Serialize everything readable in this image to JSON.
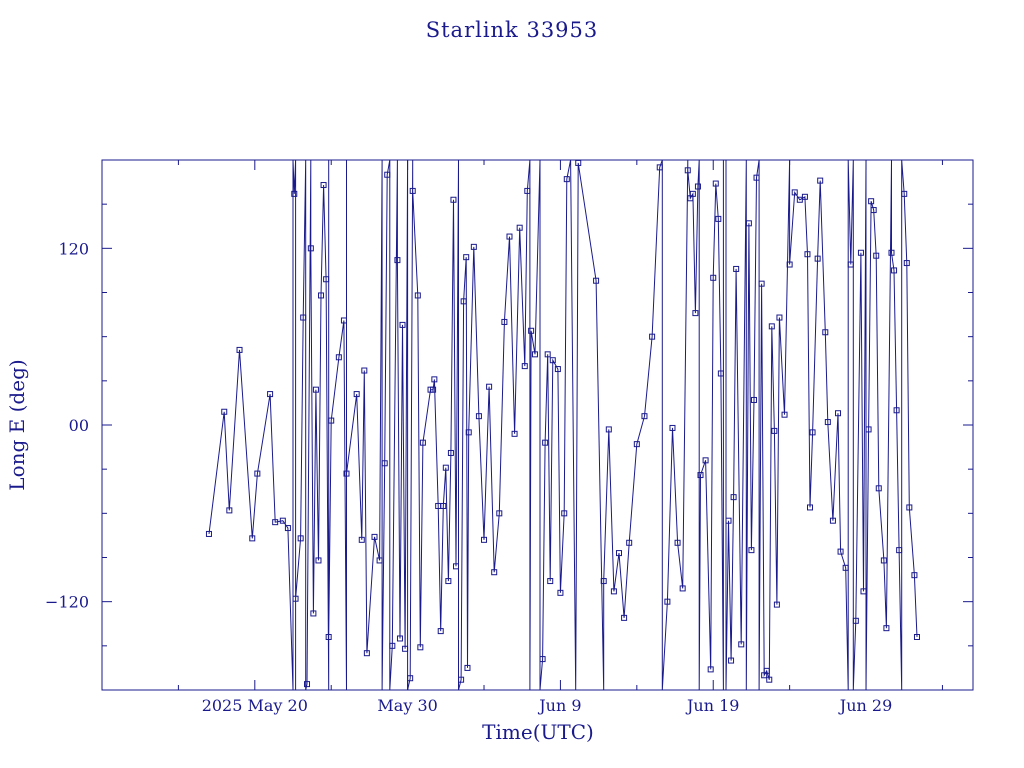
{
  "chart_data": {
    "type": "line",
    "title": "Starlink 33953",
    "xlabel": "Time(UTC)",
    "ylabel": "Long E (deg)",
    "xlim": [
      "2025-05-10",
      "2025-07-06"
    ],
    "ylim": [
      -180,
      180
    ],
    "x_ticks": [
      {
        "date": "2025-05-20",
        "label": "2025 May 20"
      },
      {
        "date": "2025-05-30",
        "label": "May 30"
      },
      {
        "date": "2025-06-09",
        "label": "Jun  9"
      },
      {
        "date": "2025-06-19",
        "label": "Jun 19"
      },
      {
        "date": "2025-06-29",
        "label": "Jun 29"
      }
    ],
    "y_ticks": [
      {
        "value": 120,
        "label": "120"
      },
      {
        "value": 0,
        "label": "00"
      },
      {
        "value": -120,
        "label": "−120"
      }
    ],
    "grid": false,
    "color": "#1a1a8c",
    "series": [
      {
        "points": [
          [
            "2025-05-17T00:00",
            -74
          ],
          [
            "2025-05-18T00:00",
            9
          ],
          [
            "2025-05-18T08:00",
            -58
          ],
          [
            "2025-05-19T00:00",
            51
          ],
          [
            "2025-05-19T20:00",
            -77
          ],
          [
            "2025-05-20T04:00",
            -33
          ],
          [
            "2025-05-21T00:00",
            21
          ],
          [
            "2025-05-21T08:00",
            -66
          ],
          [
            "2025-05-21T20:00",
            -65
          ],
          [
            "2025-05-22T04:00",
            -70
          ],
          [
            "2025-05-22T12:00",
            -180
          ],
          [
            "2025-05-22T12:00",
            180
          ],
          [
            "2025-05-22T14:00",
            157
          ],
          [
            "2025-05-22T16:00",
            180
          ],
          [
            "2025-05-22T16:00",
            -180
          ],
          [
            "2025-05-22T16:00",
            -118
          ],
          [
            "2025-05-23T00:00",
            -77
          ],
          [
            "2025-05-23T04:00",
            73
          ],
          [
            "2025-05-23T08:00",
            180
          ],
          [
            "2025-05-23T08:00",
            -180
          ],
          [
            "2025-05-23T10:00",
            -176
          ],
          [
            "2025-05-23T16:00",
            180
          ],
          [
            "2025-05-23T16:00",
            120
          ],
          [
            "2025-05-23T20:00",
            -128
          ],
          [
            "2025-05-24T00:00",
            24
          ],
          [
            "2025-05-24T04:00",
            -92
          ],
          [
            "2025-05-24T08:00",
            88
          ],
          [
            "2025-05-24T12:00",
            163
          ],
          [
            "2025-05-24T16:00",
            99
          ],
          [
            "2025-05-24T20:00",
            -180
          ],
          [
            "2025-05-24T20:00",
            180
          ],
          [
            "2025-05-24T20:00",
            -144
          ],
          [
            "2025-05-25T00:00",
            3
          ],
          [
            "2025-05-25T12:00",
            46
          ],
          [
            "2025-05-25T20:00",
            71
          ],
          [
            "2025-05-26T00:00",
            -180
          ],
          [
            "2025-05-26T00:00",
            180
          ],
          [
            "2025-05-26T00:00",
            -33
          ],
          [
            "2025-05-26T16:00",
            21
          ],
          [
            "2025-05-27T00:00",
            -78
          ],
          [
            "2025-05-27T04:00",
            37
          ],
          [
            "2025-05-27T08:00",
            -155
          ],
          [
            "2025-05-27T20:00",
            -76
          ],
          [
            "2025-05-28T04:00",
            -92
          ],
          [
            "2025-05-28T08:00",
            180
          ],
          [
            "2025-05-28T08:00",
            -180
          ],
          [
            "2025-05-28T12:00",
            -26
          ],
          [
            "2025-05-28T16:00",
            170
          ],
          [
            "2025-05-28T20:00",
            180
          ],
          [
            "2025-05-28T20:00",
            -180
          ],
          [
            "2025-05-29T00:00",
            -150
          ],
          [
            "2025-05-29T08:00",
            180
          ],
          [
            "2025-05-29T08:00",
            112
          ],
          [
            "2025-05-29T12:00",
            -145
          ],
          [
            "2025-05-29T16:00",
            68
          ],
          [
            "2025-05-29T20:00",
            -152
          ],
          [
            "2025-05-30T00:00",
            180
          ],
          [
            "2025-05-30T00:00",
            -180
          ],
          [
            "2025-05-30T04:00",
            -172
          ],
          [
            "2025-05-30T08:00",
            180
          ],
          [
            "2025-05-30T08:00",
            159
          ],
          [
            "2025-05-30T16:00",
            88
          ],
          [
            "2025-05-30T20:00",
            -151
          ],
          [
            "2025-05-31T00:00",
            -12
          ],
          [
            "2025-05-31T12:00",
            24
          ],
          [
            "2025-05-31T16:00",
            24
          ],
          [
            "2025-05-31T18:00",
            31
          ],
          [
            "2025-06-01T00:00",
            -55
          ],
          [
            "2025-06-01T04:00",
            -140
          ],
          [
            "2025-06-01T08:00",
            -55
          ],
          [
            "2025-06-01T12:00",
            -29
          ],
          [
            "2025-06-01T16:00",
            -106
          ],
          [
            "2025-06-01T20:00",
            -19
          ],
          [
            "2025-06-02T00:00",
            153
          ],
          [
            "2025-06-02T04:00",
            -96
          ],
          [
            "2025-06-02T08:00",
            180
          ],
          [
            "2025-06-02T08:00",
            -180
          ],
          [
            "2025-06-02T12:00",
            -173
          ],
          [
            "2025-06-02T16:00",
            84
          ],
          [
            "2025-06-02T20:00",
            114
          ],
          [
            "2025-06-02T22:00",
            -165
          ],
          [
            "2025-06-03T00:00",
            -5
          ],
          [
            "2025-06-03T08:00",
            121
          ],
          [
            "2025-06-03T16:00",
            6
          ],
          [
            "2025-06-04T00:00",
            -78
          ],
          [
            "2025-06-04T08:00",
            26
          ],
          [
            "2025-06-04T16:00",
            -100
          ],
          [
            "2025-06-05T00:00",
            -60
          ],
          [
            "2025-06-05T08:00",
            70
          ],
          [
            "2025-06-05T16:00",
            128
          ],
          [
            "2025-06-06T00:00",
            -6
          ],
          [
            "2025-06-06T08:00",
            134
          ],
          [
            "2025-06-06T16:00",
            40
          ],
          [
            "2025-06-06T20:00",
            159
          ],
          [
            "2025-06-07T00:00",
            180
          ],
          [
            "2025-06-07T00:00",
            -180
          ],
          [
            "2025-06-07T02:00",
            64
          ],
          [
            "2025-06-07T08:00",
            48
          ],
          [
            "2025-06-07T16:00",
            180
          ],
          [
            "2025-06-07T16:00",
            -180
          ],
          [
            "2025-06-07T20:00",
            -159
          ],
          [
            "2025-06-08T00:00",
            -12
          ],
          [
            "2025-06-08T04:00",
            48
          ],
          [
            "2025-06-08T08:00",
            -106
          ],
          [
            "2025-06-08T12:00",
            44
          ],
          [
            "2025-06-08T20:00",
            38
          ],
          [
            "2025-06-09T00:00",
            -114
          ],
          [
            "2025-06-09T06:00",
            -60
          ],
          [
            "2025-06-09T10:00",
            167
          ],
          [
            "2025-06-09T16:00",
            180
          ],
          [
            "2025-06-10T00:00",
            -180
          ],
          [
            "2025-06-10T04:00",
            178
          ],
          [
            "2025-06-11T08:00",
            98
          ],
          [
            "2025-06-11T20:00",
            -180
          ],
          [
            "2025-06-11T20:00",
            -106
          ],
          [
            "2025-06-12T04:00",
            -3
          ],
          [
            "2025-06-12T12:00",
            -113
          ],
          [
            "2025-06-12T20:00",
            -87
          ],
          [
            "2025-06-13T04:00",
            -131
          ],
          [
            "2025-06-13T12:00",
            -80
          ],
          [
            "2025-06-14T00:00",
            -13
          ],
          [
            "2025-06-14T12:00",
            6
          ],
          [
            "2025-06-15T00:00",
            60
          ],
          [
            "2025-06-15T12:00",
            175
          ],
          [
            "2025-06-15T16:00",
            180
          ],
          [
            "2025-06-15T16:00",
            -180
          ],
          [
            "2025-06-16T00:00",
            -120
          ],
          [
            "2025-06-16T08:00",
            -2
          ],
          [
            "2025-06-16T16:00",
            -80
          ],
          [
            "2025-06-17T00:00",
            -111
          ],
          [
            "2025-06-17T08:00",
            180
          ],
          [
            "2025-06-17T08:00",
            173
          ],
          [
            "2025-06-17T12:00",
            154
          ],
          [
            "2025-06-17T16:00",
            157
          ],
          [
            "2025-06-17T20:00",
            76
          ],
          [
            "2025-06-18T00:00",
            162
          ],
          [
            "2025-06-18T02:00",
            180
          ],
          [
            "2025-06-18T02:00",
            -180
          ],
          [
            "2025-06-18T04:00",
            -34
          ],
          [
            "2025-06-18T12:00",
            -24
          ],
          [
            "2025-06-18T20:00",
            -166
          ],
          [
            "2025-06-19T00:00",
            100
          ],
          [
            "2025-06-19T04:00",
            164
          ],
          [
            "2025-06-19T08:00",
            140
          ],
          [
            "2025-06-19T12:00",
            35
          ],
          [
            "2025-06-19T16:00",
            -180
          ],
          [
            "2025-06-19T16:00",
            180
          ],
          [
            "2025-06-19T20:00",
            180
          ],
          [
            "2025-06-19T20:00",
            -180
          ],
          [
            "2025-06-20T00:00",
            -65
          ],
          [
            "2025-06-20T04:00",
            -160
          ],
          [
            "2025-06-20T08:00",
            -49
          ],
          [
            "2025-06-20T12:00",
            106
          ],
          [
            "2025-06-20T20:00",
            -149
          ],
          [
            "2025-06-21T04:00",
            180
          ],
          [
            "2025-06-21T04:00",
            -180
          ],
          [
            "2025-06-21T08:00",
            137
          ],
          [
            "2025-06-21T12:00",
            -85
          ],
          [
            "2025-06-21T16:00",
            17
          ],
          [
            "2025-06-21T20:00",
            168
          ],
          [
            "2025-06-22T00:00",
            180
          ],
          [
            "2025-06-22T00:00",
            -180
          ],
          [
            "2025-06-22T04:00",
            96
          ],
          [
            "2025-06-22T08:00",
            -170
          ],
          [
            "2025-06-22T12:00",
            -167
          ],
          [
            "2025-06-22T16:00",
            -173
          ],
          [
            "2025-06-22T20:00",
            67
          ],
          [
            "2025-06-23T00:00",
            -4
          ],
          [
            "2025-06-23T04:00",
            -122
          ],
          [
            "2025-06-23T08:00",
            73
          ],
          [
            "2025-06-23T16:00",
            7
          ],
          [
            "2025-06-24T00:00",
            180
          ],
          [
            "2025-06-24T00:00",
            109
          ],
          [
            "2025-06-24T08:00",
            158
          ],
          [
            "2025-06-24T16:00",
            153
          ],
          [
            "2025-06-25T00:00",
            155
          ],
          [
            "2025-06-25T04:00",
            116
          ],
          [
            "2025-06-25T08:00",
            -56
          ],
          [
            "2025-06-25T12:00",
            -5
          ],
          [
            "2025-06-25T20:00",
            113
          ],
          [
            "2025-06-26T00:00",
            166
          ],
          [
            "2025-06-26T08:00",
            63
          ],
          [
            "2025-06-26T12:00",
            2
          ],
          [
            "2025-06-26T20:00",
            -65
          ],
          [
            "2025-06-27T04:00",
            8
          ],
          [
            "2025-06-27T08:00",
            -86
          ],
          [
            "2025-06-27T16:00",
            -97
          ],
          [
            "2025-06-27T20:00",
            -180
          ],
          [
            "2025-06-27T20:00",
            180
          ],
          [
            "2025-06-28T00:00",
            109
          ],
          [
            "2025-06-28T04:00",
            180
          ],
          [
            "2025-06-28T04:00",
            -180
          ],
          [
            "2025-06-28T08:00",
            -133
          ],
          [
            "2025-06-28T16:00",
            117
          ],
          [
            "2025-06-28T20:00",
            -113
          ],
          [
            "2025-06-29T00:00",
            180
          ],
          [
            "2025-06-29T00:00",
            -180
          ],
          [
            "2025-06-29T04:00",
            -3
          ],
          [
            "2025-06-29T08:00",
            152
          ],
          [
            "2025-06-29T12:00",
            146
          ],
          [
            "2025-06-29T16:00",
            115
          ],
          [
            "2025-06-29T20:00",
            -43
          ],
          [
            "2025-06-30T04:00",
            -92
          ],
          [
            "2025-06-30T08:00",
            -138
          ],
          [
            "2025-06-30T16:00",
            180
          ],
          [
            "2025-06-30T16:00",
            117
          ],
          [
            "2025-06-30T20:00",
            105
          ],
          [
            "2025-07-01T00:00",
            10
          ],
          [
            "2025-07-01T04:00",
            -85
          ],
          [
            "2025-07-01T08:00",
            -180
          ],
          [
            "2025-07-01T08:00",
            180
          ],
          [
            "2025-07-01T12:00",
            157
          ],
          [
            "2025-07-01T16:00",
            110
          ],
          [
            "2025-07-01T20:00",
            -56
          ],
          [
            "2025-07-02T04:00",
            -102
          ],
          [
            "2025-07-02T08:00",
            -144
          ]
        ]
      }
    ]
  }
}
